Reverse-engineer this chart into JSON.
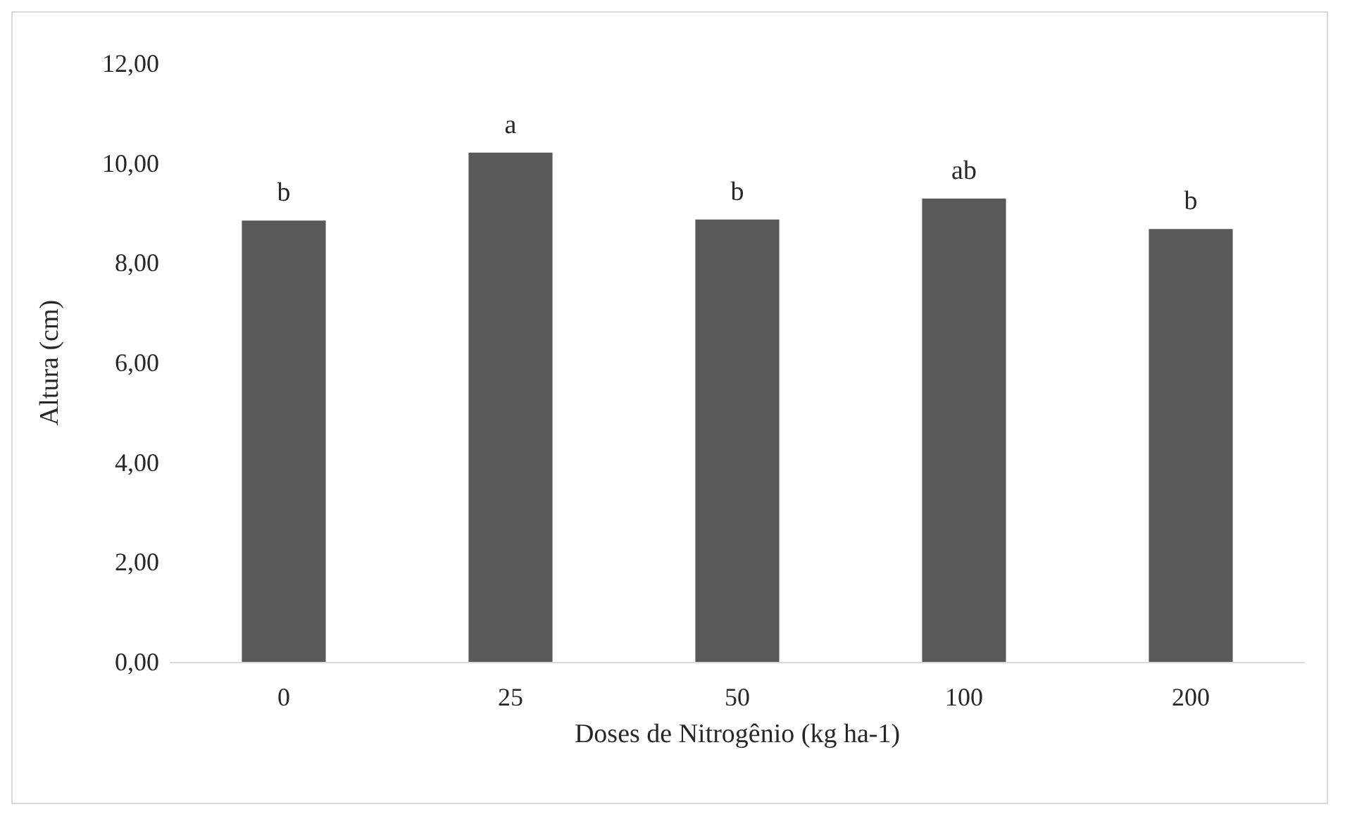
{
  "chart_data": {
    "type": "bar",
    "xlabel": "Doses de Nitrogênio (kg ha-1)",
    "ylabel": "Altura (cm)",
    "categories": [
      "0",
      "25",
      "50",
      "100",
      "200"
    ],
    "values": [
      8.85,
      10.21,
      8.87,
      9.29,
      8.68
    ],
    "color": "#595959",
    "ylim": [
      0,
      12
    ],
    "yticks": [
      {
        "value": 0,
        "label": "0,00"
      },
      {
        "value": 2,
        "label": "2,00"
      },
      {
        "value": 4,
        "label": "4,00"
      },
      {
        "value": 6,
        "label": "6,00"
      },
      {
        "value": 8,
        "label": "8,00"
      },
      {
        "value": 10,
        "label": "10,00"
      },
      {
        "value": 12,
        "label": "12,00"
      }
    ],
    "grid": false,
    "annotations": [
      {
        "text": "b",
        "x": "0",
        "y": 8.85
      },
      {
        "text": "a",
        "x": "25",
        "y": 10.21
      },
      {
        "text": "b",
        "x": "50",
        "y": 8.87
      },
      {
        "text": "ab",
        "x": "100",
        "y": 9.29
      },
      {
        "text": "b",
        "x": "200",
        "y": 8.68
      }
    ]
  }
}
